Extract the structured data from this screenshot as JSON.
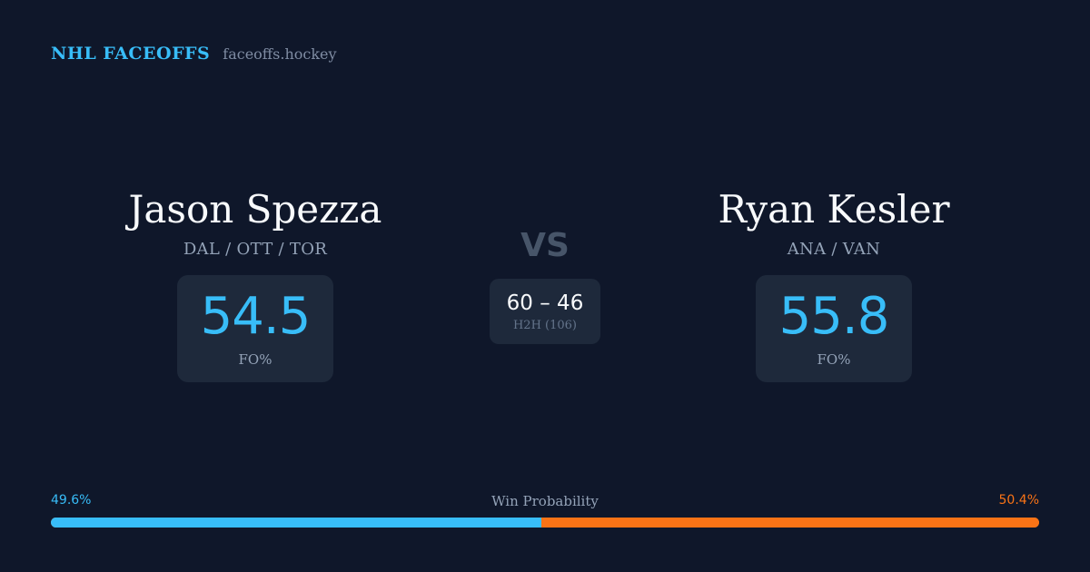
{
  "brand": {
    "title": "NHL FACEOFFS",
    "url": "faceoffs.hockey"
  },
  "players": {
    "left": {
      "name": "Jason Spezza",
      "teams": "DAL / OTT / TOR",
      "fo_value": "54.5",
      "fo_label": "FO%"
    },
    "right": {
      "name": "Ryan Kesler",
      "teams": "ANA / VAN",
      "fo_value": "55.8",
      "fo_label": "FO%"
    }
  },
  "matchup": {
    "vs": "VS",
    "h2h_score": "60 – 46",
    "h2h_label": "H2H (106)"
  },
  "win_probability": {
    "title": "Win Probability",
    "left_label": "49.6%",
    "right_label": "50.4%",
    "left_value": 49.6,
    "right_value": 50.4
  },
  "colors": {
    "background": "#0f172a",
    "card": "#1e293b",
    "accent_left": "#38bdf8",
    "accent_right": "#f97316"
  }
}
